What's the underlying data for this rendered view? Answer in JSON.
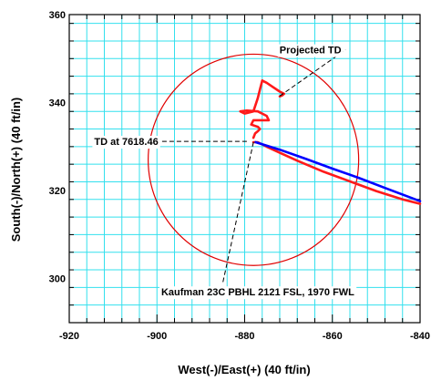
{
  "chart_data": {
    "type": "line",
    "title": "",
    "xlabel": "West(-)/East(+) (40 ft/in)",
    "ylabel": "South(-)/North(+) (40 ft/in)",
    "xlim": [
      -920,
      -840
    ],
    "ylim": [
      290,
      360
    ],
    "x_ticks": [
      -920,
      -900,
      -880,
      -860,
      -840
    ],
    "y_ticks": [
      300,
      320,
      340,
      360
    ],
    "x_tick_labels": [
      "-920",
      "-900",
      "-880",
      "-860",
      "-840"
    ],
    "y_tick_labels": [
      "300",
      "320",
      "340",
      "360"
    ],
    "grid": true,
    "grid_color": "#33e0ee",
    "target_circle": {
      "center": [
        -878,
        327
      ],
      "radius": 24,
      "color": "#e00000"
    },
    "series": [
      {
        "color": "#ff1a1a",
        "x": [
          -878,
          -877,
          -875,
          -872,
          -868,
          -862,
          -856,
          -850,
          -844,
          -840
        ],
        "y": [
          331,
          331,
          330,
          328.6,
          326.8,
          324.3,
          322.1,
          319.9,
          318.0,
          317.0
        ]
      },
      {
        "color": "#ff1a1a",
        "x": [
          -878,
          -877.6,
          -877,
          -876.5,
          -877,
          -878.5,
          -878,
          -876,
          -874.5,
          -875,
          -877,
          -879.5,
          -881,
          -880,
          -878,
          -877,
          -876.5,
          -876
        ],
        "y": [
          332,
          333,
          333.5,
          334,
          334.5,
          335,
          336,
          336,
          336,
          337,
          338,
          338.2,
          338,
          337.5,
          338,
          341,
          343,
          345
        ]
      },
      {
        "color": "#ff1a1a",
        "x": [
          -876,
          -875,
          -873.5,
          -872,
          -871,
          -871.5,
          -872
        ],
        "y": [
          345,
          344.5,
          343.5,
          342.5,
          342,
          341.6,
          341.4
        ]
      },
      {
        "color": "#0000ff",
        "x": [
          -877.5,
          -872,
          -866,
          -860,
          -854,
          -848,
          -840
        ],
        "y": [
          331,
          329.3,
          327.2,
          325,
          322.9,
          320.6,
          317.6
        ]
      }
    ],
    "annotations": [
      {
        "text": "Projected TD",
        "text_anchor_pt": [
          -865,
          352
        ],
        "line_from": [
          -872,
          341.5
        ],
        "line_to": [
          -857,
          352
        ]
      },
      {
        "text": "TD at 7618.46",
        "text_anchor_pt": [
          -907,
          331.2
        ],
        "line_from": [
          -879.5,
          331.2
        ],
        "line_to": [
          -900,
          331.2
        ]
      },
      {
        "text": "Kaufman 23C PBHL 2121 FSL, 1970 FWL",
        "text_anchor_pt": [
          -877,
          297
        ],
        "line_from": [
          -878,
          331
        ],
        "line_to": [
          -885,
          299
        ]
      }
    ]
  }
}
